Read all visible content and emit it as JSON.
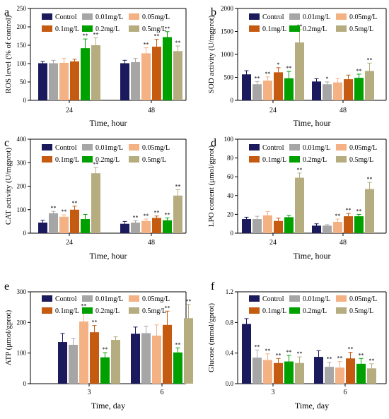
{
  "colors": {
    "Control": "#1a1a5c",
    "0.01mg/L": "#a6a6a6",
    "0.05mg/L": "#f4b183",
    "0.1mg/L": "#c55a11",
    "0.2mg/L": "#00a000",
    "0.5mg/L": "#b5ac7f"
  },
  "chart_data": [
    {
      "panel": "a",
      "type": "bar",
      "ylabel": "ROS level  (% of control)",
      "xlabel": "Time, hour",
      "ylim": [
        0,
        250
      ],
      "yticks": [
        0,
        50,
        100,
        150,
        200,
        250
      ],
      "categories": [
        "24",
        "48"
      ],
      "series": [
        {
          "name": "Control",
          "values": [
            101,
            101
          ],
          "errors": [
            5,
            8
          ],
          "sig": [
            "",
            ""
          ]
        },
        {
          "name": "0.01mg/L",
          "values": [
            101,
            104
          ],
          "errors": [
            8,
            10
          ],
          "sig": [
            "",
            ""
          ]
        },
        {
          "name": "0.05mg/L",
          "values": [
            102,
            128
          ],
          "errors": [
            12,
            15
          ],
          "sig": [
            "",
            "**"
          ]
        },
        {
          "name": "0.1mg/L",
          "values": [
            106,
            146
          ],
          "errors": [
            6,
            20
          ],
          "sig": [
            "",
            "**"
          ]
        },
        {
          "name": "0.2mg/L",
          "values": [
            142,
            172
          ],
          "errors": [
            25,
            15
          ],
          "sig": [
            "**",
            "**"
          ]
        },
        {
          "name": "0.5mg/L",
          "values": [
            150,
            134
          ],
          "errors": [
            20,
            14
          ],
          "sig": [
            "**",
            "**"
          ]
        }
      ]
    },
    {
      "panel": "b",
      "type": "bar",
      "ylabel": "SOD activity (U/mgprot)",
      "xlabel": "Time, hour",
      "ylim": [
        0,
        2000
      ],
      "yticks": [
        0,
        500,
        1000,
        1500,
        2000
      ],
      "categories": [
        "24",
        "48"
      ],
      "series": [
        {
          "name": "Control",
          "values": [
            565,
            410
          ],
          "errors": [
            80,
            60
          ],
          "sig": [
            "",
            ""
          ]
        },
        {
          "name": "0.01mg/L",
          "values": [
            350,
            350
          ],
          "errors": [
            60,
            50
          ],
          "sig": [
            "**",
            "*"
          ]
        },
        {
          "name": "0.05mg/L",
          "values": [
            430,
            390
          ],
          "errors": [
            80,
            80
          ],
          "sig": [
            "**",
            ""
          ]
        },
        {
          "name": "0.1mg/L",
          "values": [
            610,
            460
          ],
          "errors": [
            100,
            90
          ],
          "sig": [
            "*",
            ""
          ]
        },
        {
          "name": "0.2mg/L",
          "values": [
            480,
            490
          ],
          "errors": [
            150,
            80
          ],
          "sig": [
            "**",
            "**"
          ]
        },
        {
          "name": "0.5mg/L",
          "values": [
            1260,
            640
          ],
          "errors": [
            280,
            170
          ],
          "sig": [
            "**",
            "**"
          ]
        }
      ]
    },
    {
      "panel": "c",
      "type": "bar",
      "ylabel": "CAT activity (U/mgprot)",
      "xlabel": "Time, hour",
      "ylim": [
        0,
        400
      ],
      "yticks": [
        0,
        100,
        200,
        300,
        400
      ],
      "categories": [
        "24",
        "48"
      ],
      "series": [
        {
          "name": "Control",
          "values": [
            45,
            40
          ],
          "errors": [
            10,
            10
          ],
          "sig": [
            "",
            ""
          ]
        },
        {
          "name": "0.01mg/L",
          "values": [
            85,
            45
          ],
          "errors": [
            8,
            8
          ],
          "sig": [
            "**",
            "**"
          ]
        },
        {
          "name": "0.05mg/L",
          "values": [
            70,
            52
          ],
          "errors": [
            8,
            8
          ],
          "sig": [
            "**",
            "**"
          ]
        },
        {
          "name": "0.1mg/L",
          "values": [
            100,
            65
          ],
          "errors": [
            15,
            8
          ],
          "sig": [
            "**",
            "**"
          ]
        },
        {
          "name": "0.2mg/L",
          "values": [
            60,
            55
          ],
          "errors": [
            20,
            10
          ],
          "sig": [
            "",
            "**"
          ]
        },
        {
          "name": "0.5mg/L",
          "values": [
            255,
            160
          ],
          "errors": [
            25,
            25
          ],
          "sig": [
            "**",
            "**"
          ]
        }
      ]
    },
    {
      "panel": "d",
      "type": "bar",
      "ylabel": "LPO content (μmol/gprot)",
      "xlabel": "Time, hour",
      "ylim": [
        0,
        100
      ],
      "yticks": [
        0,
        20,
        40,
        60,
        80,
        100
      ],
      "categories": [
        "24",
        "48"
      ],
      "series": [
        {
          "name": "Control",
          "values": [
            15,
            8
          ],
          "errors": [
            2,
            2
          ],
          "sig": [
            "",
            ""
          ]
        },
        {
          "name": "0.01mg/L",
          "values": [
            15,
            8
          ],
          "errors": [
            3,
            1
          ],
          "sig": [
            "",
            ""
          ]
        },
        {
          "name": "0.05mg/L",
          "values": [
            19,
            12
          ],
          "errors": [
            4,
            3
          ],
          "sig": [
            "",
            "**"
          ]
        },
        {
          "name": "0.1mg/L",
          "values": [
            13,
            18
          ],
          "errors": [
            3,
            3
          ],
          "sig": [
            "",
            "**"
          ]
        },
        {
          "name": "0.2mg/L",
          "values": [
            17,
            18
          ],
          "errors": [
            2,
            2
          ],
          "sig": [
            "",
            "**"
          ]
        },
        {
          "name": "0.5mg/L",
          "values": [
            59,
            47
          ],
          "errors": [
            5,
            7
          ],
          "sig": [
            "**",
            "**"
          ]
        }
      ]
    },
    {
      "panel": "e",
      "type": "bar",
      "ylabel": "ATP (μmol/gprot)",
      "xlabel": "Time, day",
      "ylim": [
        0,
        300
      ],
      "yticks": [
        0,
        100,
        200,
        300
      ],
      "categories": [
        "3",
        "6"
      ],
      "series": [
        {
          "name": "Control",
          "values": [
            136,
            163
          ],
          "errors": [
            28,
            22
          ],
          "sig": [
            "",
            ""
          ]
        },
        {
          "name": "0.01mg/L",
          "values": [
            127,
            165
          ],
          "errors": [
            20,
            23
          ],
          "sig": [
            "",
            ""
          ]
        },
        {
          "name": "0.05mg/L",
          "values": [
            203,
            157
          ],
          "errors": [
            40,
            35
          ],
          "sig": [
            "**",
            ""
          ]
        },
        {
          "name": "0.1mg/L",
          "values": [
            168,
            192
          ],
          "errors": [
            22,
            45
          ],
          "sig": [
            "**",
            "**"
          ]
        },
        {
          "name": "0.2mg/L",
          "values": [
            86,
            102
          ],
          "errors": [
            15,
            15
          ],
          "sig": [
            "**",
            "**"
          ]
        },
        {
          "name": "0.5mg/L",
          "values": [
            143,
            214
          ],
          "errors": [
            10,
            45
          ],
          "sig": [
            "",
            "**"
          ]
        }
      ]
    },
    {
      "panel": "f",
      "type": "bar",
      "ylabel": "Glucose (mmol/gprot)",
      "xlabel": "Time, day",
      "ylim": [
        0,
        1.2
      ],
      "yticks": [
        0.0,
        0.4,
        0.8,
        1.2
      ],
      "categories": [
        "3",
        "6"
      ],
      "series": [
        {
          "name": "Control",
          "values": [
            0.78,
            0.35
          ],
          "errors": [
            0.07,
            0.08
          ],
          "sig": [
            "",
            ""
          ]
        },
        {
          "name": "0.01mg/L",
          "values": [
            0.34,
            0.22
          ],
          "errors": [
            0.1,
            0.06
          ],
          "sig": [
            "**",
            "**"
          ]
        },
        {
          "name": "0.05mg/L",
          "values": [
            0.31,
            0.21
          ],
          "errors": [
            0.08,
            0.08
          ],
          "sig": [
            "**",
            "**"
          ]
        },
        {
          "name": "0.1mg/L",
          "values": [
            0.27,
            0.33
          ],
          "errors": [
            0.06,
            0.08
          ],
          "sig": [
            "**",
            "**"
          ]
        },
        {
          "name": "0.2mg/L",
          "values": [
            0.29,
            0.26
          ],
          "errors": [
            0.08,
            0.07
          ],
          "sig": [
            "**",
            "**"
          ]
        },
        {
          "name": "0.5mg/L",
          "values": [
            0.27,
            0.2
          ],
          "errors": [
            0.08,
            0.06
          ],
          "sig": [
            "**",
            "**"
          ]
        }
      ]
    }
  ]
}
